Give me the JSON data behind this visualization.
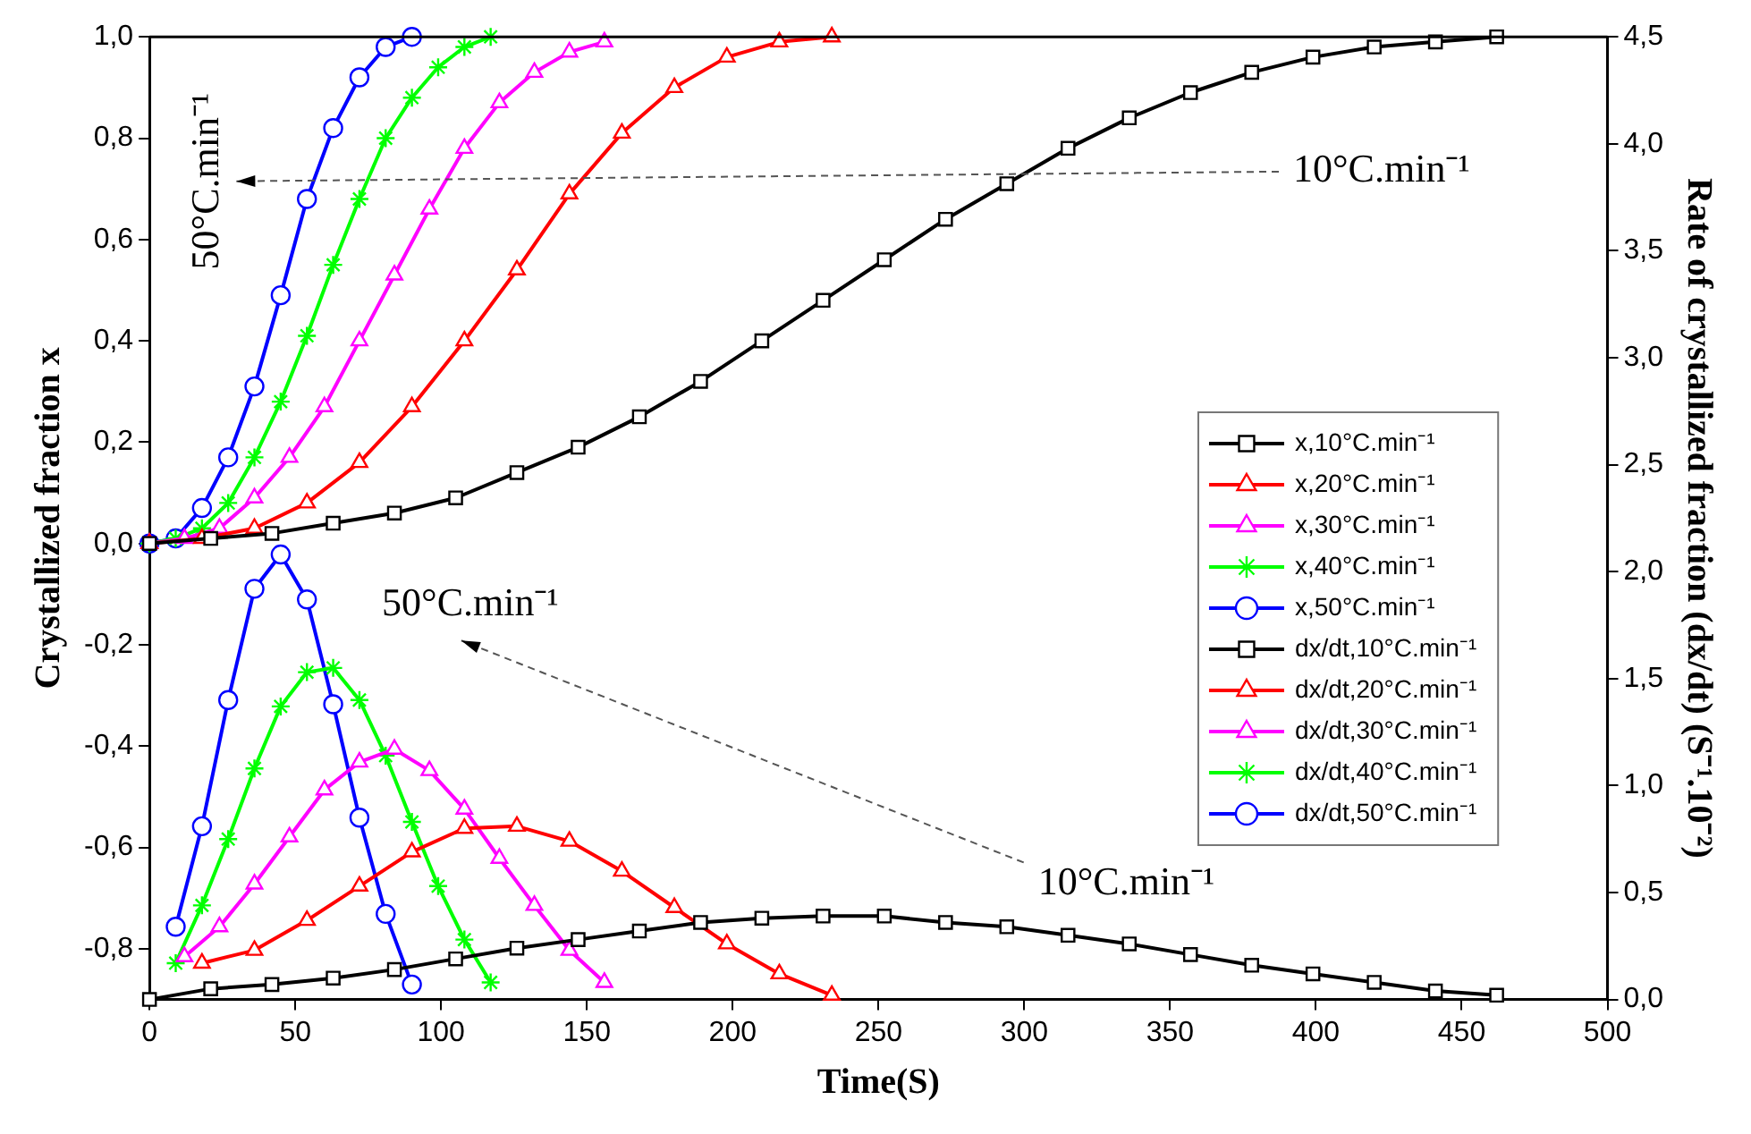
{
  "chart_data": {
    "type": "line",
    "xlabel": "Time(S)",
    "ylabel": "Crystallized fraction x",
    "y2label": "Rate of crystallized fraction (dx/dt) (S⁻¹.10⁻²)",
    "xlim": [
      0,
      500
    ],
    "xticks": [
      0,
      50,
      100,
      150,
      200,
      250,
      300,
      350,
      400,
      450,
      500
    ],
    "ylim": [
      -0.9,
      1.0
    ],
    "yticks": [
      {
        "value": -0.8,
        "label": "-0,8"
      },
      {
        "value": -0.6,
        "label": "-0,6"
      },
      {
        "value": -0.4,
        "label": "-0,4"
      },
      {
        "value": -0.2,
        "label": "-0,2"
      },
      {
        "value": 0,
        "label": "0,0"
      },
      {
        "value": 0.2,
        "label": "0,2"
      },
      {
        "value": 0.4,
        "label": "0,4"
      },
      {
        "value": 0.6,
        "label": "0,6"
      },
      {
        "value": 0.8,
        "label": "0,8"
      },
      {
        "value": 1.0,
        "label": "1,0"
      }
    ],
    "y2lim": [
      0,
      4.5
    ],
    "y2ticks": [
      {
        "value": 0,
        "label": "0,0"
      },
      {
        "value": 0.5,
        "label": "0,5"
      },
      {
        "value": 1.0,
        "label": "1,0"
      },
      {
        "value": 1.5,
        "label": "1,5"
      },
      {
        "value": 2.0,
        "label": "2,0"
      },
      {
        "value": 2.5,
        "label": "2,5"
      },
      {
        "value": 3.0,
        "label": "3,0"
      },
      {
        "value": 3.5,
        "label": "3,5"
      },
      {
        "value": 4.0,
        "label": "4,0"
      },
      {
        "value": 4.5,
        "label": "4,5"
      }
    ],
    "grid": false,
    "legend": "right",
    "series": [
      {
        "name": "x,10°C.min⁻¹",
        "color": "#000000",
        "marker": "square",
        "x": [
          0,
          21,
          42,
          63,
          84,
          105,
          126,
          147,
          168,
          189,
          210,
          231,
          252,
          273,
          294,
          315,
          336,
          357,
          378,
          399,
          420,
          441,
          462
        ],
        "values": [
          0,
          0.01,
          0.02,
          0.04,
          0.06,
          0.09,
          0.14,
          0.19,
          0.25,
          0.32,
          0.4,
          0.48,
          0.56,
          0.64,
          0.71,
          0.78,
          0.84,
          0.89,
          0.93,
          0.96,
          0.98,
          0.99,
          1.0
        ]
      },
      {
        "name": "x,20°C.min⁻¹",
        "color": "#ff0000",
        "marker": "triangle",
        "x": [
          0,
          18,
          36,
          54,
          72,
          90,
          108,
          126,
          144,
          162,
          180,
          198,
          216,
          234
        ],
        "values": [
          0,
          0.01,
          0.03,
          0.08,
          0.16,
          0.27,
          0.4,
          0.54,
          0.69,
          0.81,
          0.9,
          0.96,
          0.99,
          1.0
        ]
      },
      {
        "name": "x,30°C.min⁻¹",
        "color": "#ff00ff",
        "marker": "triangle",
        "x": [
          0,
          12,
          24,
          36,
          48,
          60,
          72,
          84,
          96,
          108,
          120,
          132,
          144,
          156
        ],
        "values": [
          0,
          0.01,
          0.03,
          0.09,
          0.17,
          0.27,
          0.4,
          0.53,
          0.66,
          0.78,
          0.87,
          0.93,
          0.97,
          0.99
        ]
      },
      {
        "name": "x,40°C.min⁻¹",
        "color": "#00ff00",
        "marker": "cross",
        "x": [
          0,
          9,
          18,
          27,
          36,
          45,
          54,
          63,
          72,
          81,
          90,
          99,
          108,
          117
        ],
        "values": [
          0,
          0.01,
          0.03,
          0.08,
          0.17,
          0.28,
          0.41,
          0.55,
          0.68,
          0.8,
          0.88,
          0.94,
          0.98,
          1.0
        ]
      },
      {
        "name": "x,50°C.min⁻¹",
        "color": "#0000ff",
        "marker": "circle",
        "x": [
          0,
          9,
          18,
          27,
          36,
          45,
          54,
          63,
          72,
          81,
          90
        ],
        "values": [
          0,
          0.01,
          0.07,
          0.17,
          0.31,
          0.49,
          0.68,
          0.82,
          0.92,
          0.98,
          1.0
        ]
      },
      {
        "name": "dx/dt,10°C.min⁻¹",
        "color": "#000000",
        "marker": "square",
        "axis": "y2",
        "x": [
          0,
          21,
          42,
          63,
          84,
          105,
          126,
          147,
          168,
          189,
          210,
          231,
          252,
          273,
          294,
          315,
          336,
          357,
          378,
          399,
          420,
          441,
          462
        ],
        "values": [
          0,
          0.05,
          0.07,
          0.1,
          0.14,
          0.19,
          0.24,
          0.28,
          0.32,
          0.36,
          0.38,
          0.39,
          0.39,
          0.36,
          0.34,
          0.3,
          0.26,
          0.21,
          0.16,
          0.12,
          0.08,
          0.04,
          0.02
        ]
      },
      {
        "name": "dx/dt,20°C.min⁻¹",
        "color": "#ff0000",
        "marker": "triangle",
        "axis": "y2",
        "x": [
          18,
          36,
          54,
          72,
          90,
          108,
          126,
          144,
          162,
          180,
          198,
          216,
          234
        ],
        "values": [
          0.17,
          0.23,
          0.37,
          0.53,
          0.69,
          0.8,
          0.81,
          0.74,
          0.6,
          0.43,
          0.26,
          0.12,
          0.02
        ]
      },
      {
        "name": "dx/dt,30°C.min⁻¹",
        "color": "#ff00ff",
        "marker": "triangle",
        "axis": "y2",
        "x": [
          12,
          24,
          36,
          48,
          60,
          72,
          84,
          96,
          108,
          120,
          132,
          144,
          156
        ],
        "values": [
          0.2,
          0.34,
          0.54,
          0.76,
          0.98,
          1.11,
          1.17,
          1.07,
          0.89,
          0.66,
          0.44,
          0.23,
          0.08
        ]
      },
      {
        "name": "dx/dt,40°C.min⁻¹",
        "color": "#00ff00",
        "marker": "cross",
        "axis": "y2",
        "x": [
          9,
          18,
          27,
          36,
          45,
          54,
          63,
          72,
          81,
          90,
          99,
          108,
          117
        ],
        "values": [
          0.17,
          0.44,
          0.75,
          1.08,
          1.37,
          1.53,
          1.55,
          1.4,
          1.14,
          0.83,
          0.53,
          0.28,
          0.08
        ]
      },
      {
        "name": "dx/dt,50°C.min⁻¹",
        "color": "#0000ff",
        "marker": "circle",
        "axis": "y2",
        "x": [
          9,
          18,
          27,
          36,
          45,
          54,
          63,
          72,
          81,
          90
        ],
        "values": [
          0.34,
          0.81,
          1.4,
          1.92,
          2.08,
          1.87,
          1.38,
          0.85,
          0.4,
          0.07
        ]
      }
    ],
    "annotations": [
      "50°C.min⁻¹",
      "10°C.min⁻¹",
      "50°C.min⁻¹",
      "10°C.min⁻¹"
    ]
  }
}
